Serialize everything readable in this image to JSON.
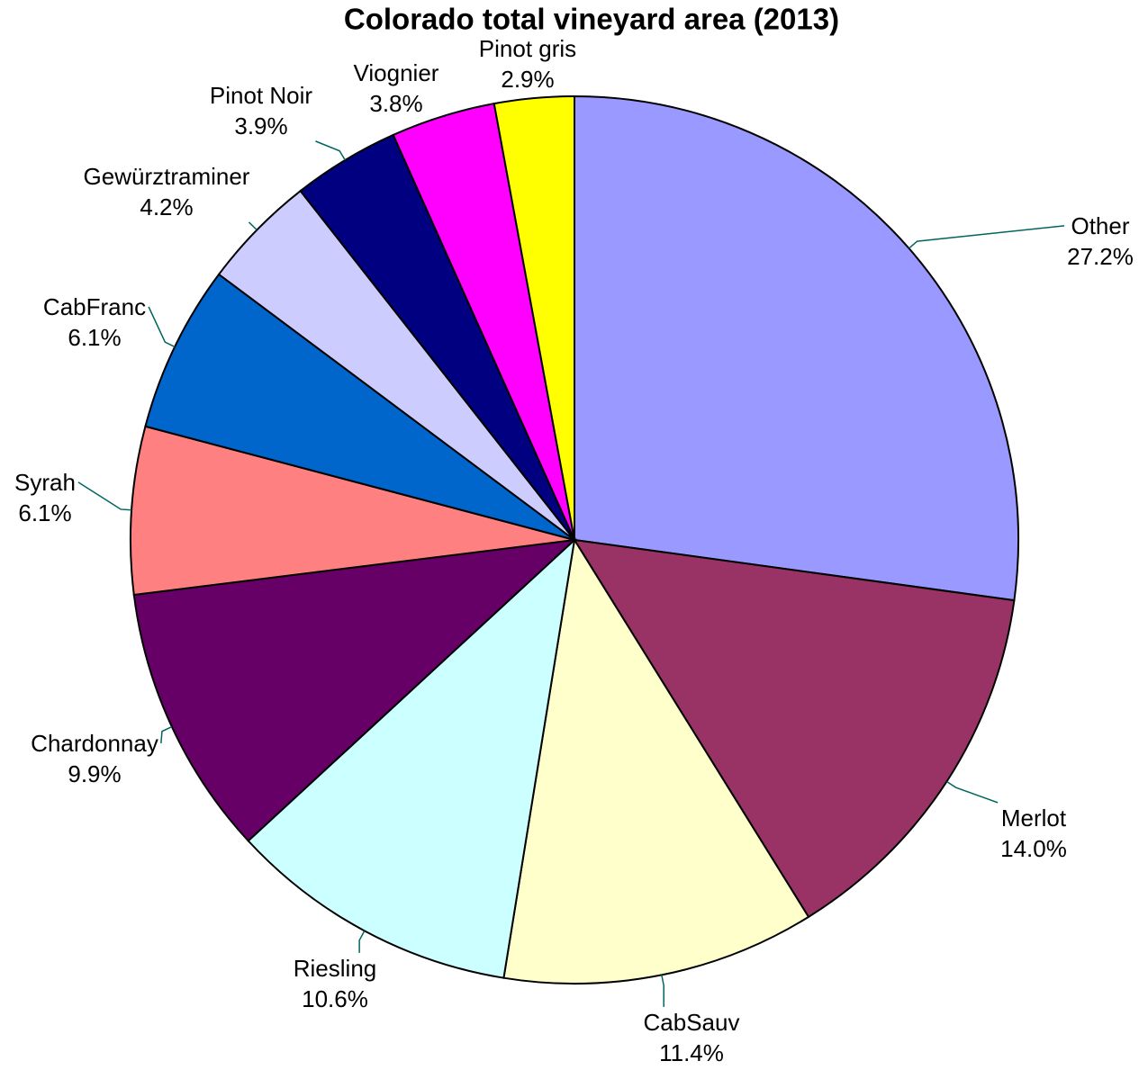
{
  "chart_data": {
    "type": "pie",
    "title": "Colorado total vineyard area (2013)",
    "categories": [
      "Other",
      "Merlot",
      "CabSauv",
      "Riesling",
      "Chardonnay",
      "Syrah",
      "CabFranc",
      "Gewürztraminer",
      "Pinot Noir",
      "Viognier",
      "Pinot gris"
    ],
    "values": [
      27.2,
      14.0,
      11.4,
      10.6,
      9.9,
      6.1,
      6.1,
      4.2,
      3.9,
      3.8,
      2.9
    ],
    "value_labels": [
      "27.2%",
      "14.0%",
      "11.4%",
      "10.6%",
      "9.9%",
      "6.1%",
      "6.1%",
      "4.2%",
      "3.9%",
      "3.8%",
      "2.9%"
    ],
    "colors": [
      "#9999ff",
      "#993366",
      "#ffffcc",
      "#ccffff",
      "#660066",
      "#ff8080",
      "#0066cc",
      "#ccccff",
      "#000080",
      "#ff00ff",
      "#ffff00"
    ]
  }
}
